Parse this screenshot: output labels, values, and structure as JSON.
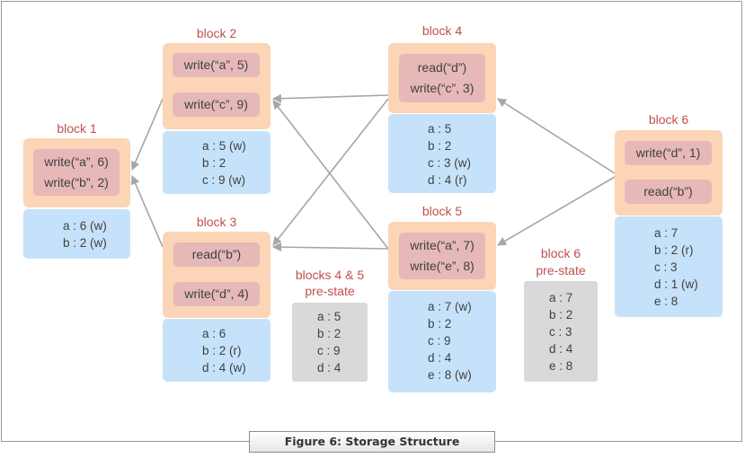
{
  "caption": "Figure 6: Storage Structure",
  "blocks": {
    "b1": {
      "title": "block 1",
      "ops": [
        [
          "write(“a”, 6)",
          "write(“b”, 2)"
        ]
      ],
      "state": [
        "a : 6 (w)",
        "b : 2 (w)"
      ]
    },
    "b2": {
      "title": "block 2",
      "ops": [
        [
          "write(“a”, 5)"
        ],
        [
          "write(“c”, 9)"
        ]
      ],
      "state": [
        "a : 5 (w)",
        "b : 2",
        "c : 9 (w)"
      ]
    },
    "b3": {
      "title": "block 3",
      "ops": [
        [
          "read(“b”)"
        ],
        [
          "write(“d”, 4)"
        ]
      ],
      "state": [
        "a : 6",
        "b : 2 (r)",
        "d : 4 (w)"
      ]
    },
    "b4": {
      "title": "block 4",
      "ops": [
        [
          "read(“d”)",
          "write(“c”, 3)"
        ]
      ],
      "state": [
        "a : 5",
        "b : 2",
        "c : 3 (w)",
        "d : 4 (r)"
      ]
    },
    "b5": {
      "title": "block 5",
      "ops": [
        [
          "write(“a”, 7)",
          "write(“e”, 8)"
        ]
      ],
      "state": [
        "a : 7 (w)",
        "b : 2",
        "c : 9",
        "d : 4",
        "e : 8 (w)"
      ]
    },
    "b6": {
      "title": "block 6",
      "ops": [
        [
          "write(“d”, 1)"
        ],
        [
          "read(“b”)"
        ]
      ],
      "state": [
        "a : 7",
        "b : 2 (r)",
        "c : 3",
        "d : 1 (w)",
        "e : 8"
      ]
    }
  },
  "prestates": {
    "p45": {
      "title": [
        "blocks 4 & 5",
        "pre-state"
      ],
      "values": [
        "a : 5",
        "b : 2",
        "c : 9",
        "d : 4"
      ]
    },
    "p6": {
      "title": [
        "block 6",
        "pre-state"
      ],
      "values": [
        "a : 7",
        "b : 2",
        "c : 3",
        "d : 4",
        "e : 8"
      ]
    }
  },
  "colors": {
    "title": "#c0504d",
    "op_container": "#fbd5b5",
    "op": "#e6b9b8",
    "state": "#c6e2fa",
    "prestate": "#d9d9d9",
    "arrow": "#a6a6a6"
  }
}
